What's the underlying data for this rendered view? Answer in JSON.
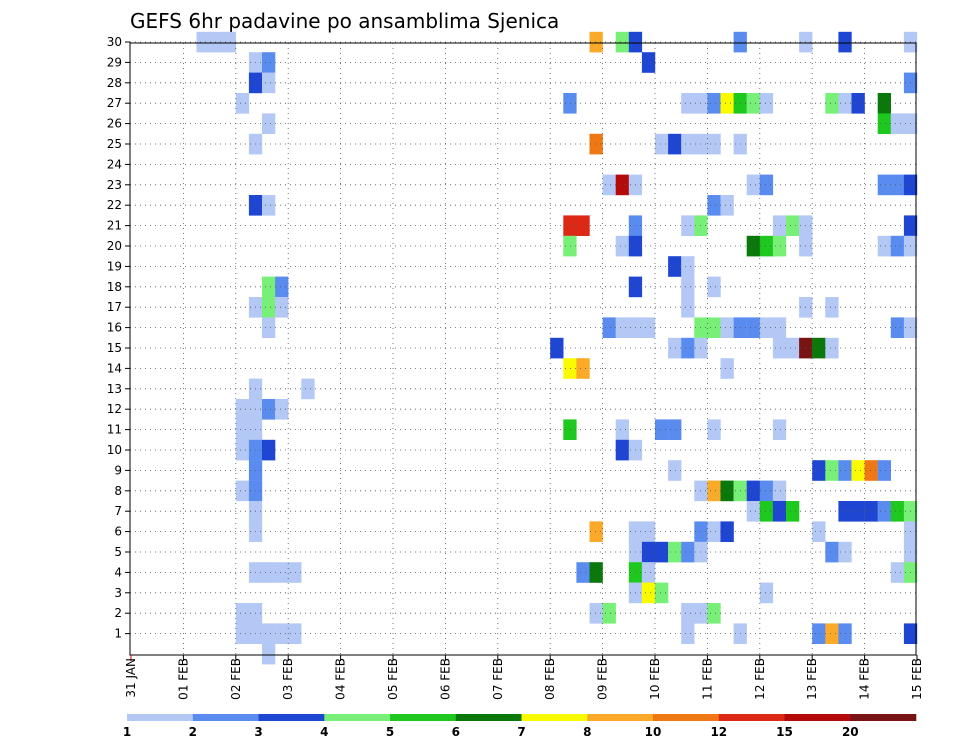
{
  "chart_data": {
    "type": "heatmap",
    "title": "GEFS 6hr padavine po ansamblima Sjenica",
    "y_ticks": [
      "1",
      "2",
      "3",
      "4",
      "5",
      "6",
      "7",
      "8",
      "9",
      "10",
      "11",
      "12",
      "13",
      "14",
      "15",
      "16",
      "17",
      "18",
      "19",
      "20",
      "21",
      "22",
      "23",
      "24",
      "25",
      "26",
      "27",
      "28",
      "29",
      "30"
    ],
    "x_ticks": [
      "31 JAN",
      "01 FEB",
      "02 FEB",
      "03 FEB",
      "04 FEB",
      "05 FEB",
      "06 FEB",
      "07 FEB",
      "08 FEB",
      "09 FEB",
      "10 FEB",
      "11 FEB",
      "12 FEB",
      "13 FEB",
      "14 FEB",
      "15 FEB"
    ],
    "grid": true,
    "colorbar": {
      "labels": [
        "1",
        "2",
        "3",
        "4",
        "5",
        "6",
        "7",
        "8",
        "10",
        "12",
        "15",
        "20"
      ],
      "colors": [
        "#b4c8f5",
        "#5a8cf0",
        "#1e46d2",
        "#78f078",
        "#1ec81e",
        "#0a780a",
        "#fafa00",
        "#faaa28",
        "#f07814",
        "#dc2814",
        "#b40a0a",
        "#781414"
      ]
    },
    "cell_colors": {
      "1": "#b4c8f5",
      "2": "#5a8cf0",
      "3": "#1e46d2",
      "4": "#78f078",
      "5": "#1ec81e",
      "6": "#0a780a",
      "7": "#fafa00",
      "8": "#faaa28",
      "9": "#f07814",
      "10": "#dc2814",
      "11": "#b40a0a",
      "12": "#781414"
    },
    "value_encoding": "each cell: [x_step, member, color_class]; x_step = 6-hour steps since 31 JAN 00Z; color_class indexes colorbar bins (1=1-2 ... 12=>20)",
    "cells": [
      [
        5,
        30,
        1
      ],
      [
        6,
        30,
        1
      ],
      [
        7,
        30,
        1
      ],
      [
        9,
        29,
        1
      ],
      [
        10,
        29,
        2
      ],
      [
        9,
        28,
        3
      ],
      [
        10,
        28,
        1
      ],
      [
        8,
        27,
        1
      ],
      [
        10,
        26,
        1
      ],
      [
        9,
        25,
        1
      ],
      [
        9,
        22,
        3
      ],
      [
        10,
        22,
        1
      ],
      [
        10,
        18,
        4
      ],
      [
        11,
        18,
        2
      ],
      [
        9,
        17,
        1
      ],
      [
        10,
        17,
        4
      ],
      [
        11,
        17,
        1
      ],
      [
        10,
        16,
        1
      ],
      [
        9,
        13,
        1
      ],
      [
        13,
        13,
        1
      ],
      [
        8,
        12,
        1
      ],
      [
        9,
        12,
        1
      ],
      [
        10,
        12,
        2
      ],
      [
        11,
        12,
        1
      ],
      [
        8,
        11,
        1
      ],
      [
        9,
        11,
        1
      ],
      [
        8,
        10,
        1
      ],
      [
        9,
        10,
        2
      ],
      [
        10,
        10,
        3
      ],
      [
        9,
        9,
        2
      ],
      [
        8,
        8,
        1
      ],
      [
        9,
        8,
        2
      ],
      [
        9,
        7,
        1
      ],
      [
        9,
        6,
        1
      ],
      [
        9,
        4,
        1
      ],
      [
        10,
        4,
        1
      ],
      [
        11,
        4,
        1
      ],
      [
        12,
        4,
        1
      ],
      [
        8,
        2,
        1
      ],
      [
        9,
        2,
        1
      ],
      [
        8,
        1,
        1
      ],
      [
        9,
        1,
        1
      ],
      [
        10,
        1,
        1
      ],
      [
        11,
        1,
        1
      ],
      [
        12,
        1,
        1
      ],
      [
        10,
        0,
        1
      ],
      [
        35,
        30,
        8
      ],
      [
        37,
        30,
        4
      ],
      [
        38,
        30,
        3
      ],
      [
        46,
        30,
        2
      ],
      [
        51,
        30,
        1
      ],
      [
        54,
        30,
        3
      ],
      [
        59,
        30,
        1
      ],
      [
        39,
        29,
        3
      ],
      [
        59,
        28,
        2
      ],
      [
        33,
        27,
        2
      ],
      [
        42,
        27,
        1
      ],
      [
        43,
        27,
        1
      ],
      [
        44,
        27,
        2
      ],
      [
        45,
        27,
        7
      ],
      [
        46,
        27,
        5
      ],
      [
        47,
        27,
        4
      ],
      [
        48,
        27,
        1
      ],
      [
        53,
        27,
        4
      ],
      [
        54,
        27,
        1
      ],
      [
        55,
        27,
        3
      ],
      [
        57,
        27,
        6
      ],
      [
        57,
        26,
        5
      ],
      [
        58,
        26,
        1
      ],
      [
        59,
        26,
        1
      ],
      [
        35,
        25,
        9
      ],
      [
        40,
        25,
        1
      ],
      [
        41,
        25,
        3
      ],
      [
        42,
        25,
        1
      ],
      [
        43,
        25,
        1
      ],
      [
        44,
        25,
        1
      ],
      [
        46,
        25,
        1
      ],
      [
        36,
        23,
        1
      ],
      [
        37,
        23,
        11
      ],
      [
        38,
        23,
        1
      ],
      [
        47,
        23,
        1
      ],
      [
        48,
        23,
        2
      ],
      [
        57,
        23,
        2
      ],
      [
        58,
        23,
        2
      ],
      [
        59,
        23,
        3
      ],
      [
        44,
        22,
        2
      ],
      [
        45,
        22,
        1
      ],
      [
        33,
        21,
        10
      ],
      [
        34,
        21,
        10
      ],
      [
        38,
        21,
        2
      ],
      [
        42,
        21,
        1
      ],
      [
        43,
        21,
        4
      ],
      [
        49,
        21,
        1
      ],
      [
        50,
        21,
        4
      ],
      [
        51,
        21,
        1
      ],
      [
        59,
        21,
        3
      ],
      [
        33,
        20,
        4
      ],
      [
        37,
        20,
        1
      ],
      [
        38,
        20,
        3
      ],
      [
        47,
        20,
        6
      ],
      [
        48,
        20,
        5
      ],
      [
        49,
        20,
        4
      ],
      [
        51,
        20,
        1
      ],
      [
        57,
        20,
        1
      ],
      [
        58,
        20,
        2
      ],
      [
        59,
        20,
        1
      ],
      [
        41,
        19,
        3
      ],
      [
        42,
        19,
        1
      ],
      [
        38,
        18,
        3
      ],
      [
        42,
        18,
        1
      ],
      [
        44,
        18,
        1
      ],
      [
        42,
        17,
        1
      ],
      [
        51,
        17,
        1
      ],
      [
        53,
        17,
        1
      ],
      [
        36,
        16,
        2
      ],
      [
        37,
        16,
        1
      ],
      [
        38,
        16,
        1
      ],
      [
        39,
        16,
        1
      ],
      [
        43,
        16,
        4
      ],
      [
        44,
        16,
        4
      ],
      [
        45,
        16,
        1
      ],
      [
        46,
        16,
        2
      ],
      [
        47,
        16,
        2
      ],
      [
        48,
        16,
        1
      ],
      [
        49,
        16,
        1
      ],
      [
        58,
        16,
        2
      ],
      [
        59,
        16,
        1
      ],
      [
        32,
        15,
        3
      ],
      [
        41,
        15,
        1
      ],
      [
        42,
        15,
        2
      ],
      [
        43,
        15,
        1
      ],
      [
        49,
        15,
        1
      ],
      [
        50,
        15,
        1
      ],
      [
        51,
        15,
        12
      ],
      [
        52,
        15,
        6
      ],
      [
        53,
        15,
        1
      ],
      [
        33,
        14,
        7
      ],
      [
        34,
        14,
        8
      ],
      [
        45,
        14,
        1
      ],
      [
        33,
        11,
        5
      ],
      [
        37,
        11,
        1
      ],
      [
        40,
        11,
        2
      ],
      [
        41,
        11,
        2
      ],
      [
        44,
        11,
        1
      ],
      [
        49,
        11,
        1
      ],
      [
        37,
        10,
        3
      ],
      [
        38,
        10,
        1
      ],
      [
        41,
        9,
        1
      ],
      [
        52,
        9,
        3
      ],
      [
        53,
        9,
        4
      ],
      [
        54,
        9,
        2
      ],
      [
        55,
        9,
        7
      ],
      [
        56,
        9,
        9
      ],
      [
        57,
        9,
        2
      ],
      [
        43,
        8,
        1
      ],
      [
        44,
        8,
        8
      ],
      [
        45,
        8,
        6
      ],
      [
        46,
        8,
        4
      ],
      [
        47,
        8,
        3
      ],
      [
        48,
        8,
        2
      ],
      [
        49,
        8,
        1
      ],
      [
        47,
        7,
        1
      ],
      [
        48,
        7,
        5
      ],
      [
        49,
        7,
        3
      ],
      [
        50,
        7,
        5
      ],
      [
        54,
        7,
        3
      ],
      [
        55,
        7,
        3
      ],
      [
        56,
        7,
        3
      ],
      [
        57,
        7,
        2
      ],
      [
        58,
        7,
        5
      ],
      [
        59,
        7,
        4
      ],
      [
        35,
        6,
        8
      ],
      [
        38,
        6,
        1
      ],
      [
        39,
        6,
        1
      ],
      [
        43,
        6,
        2
      ],
      [
        44,
        6,
        1
      ],
      [
        45,
        6,
        3
      ],
      [
        52,
        6,
        1
      ],
      [
        59,
        6,
        1
      ],
      [
        38,
        5,
        1
      ],
      [
        39,
        5,
        3
      ],
      [
        40,
        5,
        3
      ],
      [
        41,
        5,
        4
      ],
      [
        42,
        5,
        2
      ],
      [
        43,
        5,
        1
      ],
      [
        53,
        5,
        2
      ],
      [
        54,
        5,
        1
      ],
      [
        59,
        5,
        1
      ],
      [
        34,
        4,
        2
      ],
      [
        35,
        4,
        6
      ],
      [
        38,
        4,
        5
      ],
      [
        39,
        4,
        1
      ],
      [
        58,
        4,
        1
      ],
      [
        59,
        4,
        4
      ],
      [
        38,
        3,
        1
      ],
      [
        39,
        3,
        7
      ],
      [
        40,
        3,
        4
      ],
      [
        48,
        3,
        1
      ],
      [
        35,
        2,
        1
      ],
      [
        36,
        2,
        4
      ],
      [
        42,
        2,
        1
      ],
      [
        43,
        2,
        1
      ],
      [
        44,
        2,
        4
      ],
      [
        42,
        1,
        1
      ],
      [
        46,
        1,
        1
      ],
      [
        52,
        1,
        2
      ],
      [
        53,
        1,
        8
      ],
      [
        54,
        1,
        2
      ],
      [
        59,
        1,
        3
      ]
    ]
  }
}
